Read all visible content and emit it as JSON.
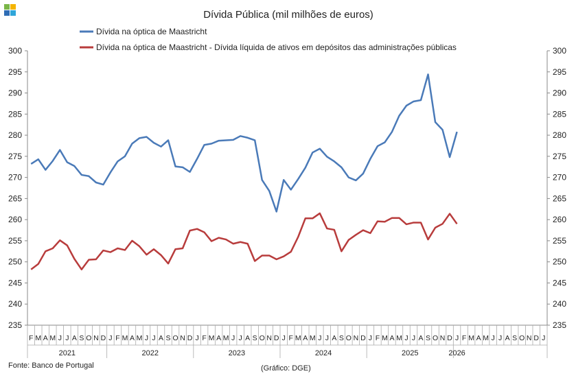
{
  "colors": {
    "series_blue": "#4a7ab8",
    "series_red": "#b83c3c",
    "logo_a": "#7ab648",
    "logo_b": "#f4b400",
    "logo_c": "#2f6db5",
    "logo_d": "#2fa6d9"
  },
  "footer": {
    "source": "Fonte: Banco de Portugal",
    "credit": "(Gráfico: DGE)"
  },
  "chart_data": {
    "type": "line",
    "title": "Dívida Pública (mil milhões de euros)",
    "ylim": [
      235,
      300
    ],
    "yticks": [
      "235",
      "240",
      "245",
      "250",
      "255",
      "260",
      "265",
      "270",
      "275",
      "280",
      "285",
      "290",
      "295",
      "300"
    ],
    "month_labels": [
      "F",
      "M",
      "A",
      "M",
      "J",
      "J",
      "A",
      "S",
      "O",
      "N",
      "D",
      "J",
      "F",
      "M",
      "A",
      "M",
      "J",
      "J",
      "A",
      "S",
      "O",
      "N",
      "D",
      "J",
      "F",
      "M",
      "A",
      "M",
      "J",
      "J",
      "A",
      "S",
      "O",
      "N",
      "D",
      "J",
      "F",
      "M",
      "A",
      "M",
      "J",
      "J",
      "A",
      "S",
      "O",
      "N",
      "D",
      "J",
      "F",
      "M",
      "A",
      "M",
      "J",
      "J",
      "A",
      "S",
      "O",
      "N",
      "D",
      "J",
      "F",
      "M",
      "A",
      "M",
      "J",
      "J",
      "A",
      "S",
      "O",
      "N",
      "D",
      "J"
    ],
    "years": [
      "2021",
      "2022",
      "2023",
      "2024",
      "2025",
      "2026"
    ],
    "year_start_index": [
      0,
      11,
      23,
      35,
      47,
      59
    ],
    "year_end_index": [
      10,
      22,
      34,
      46,
      58,
      59
    ],
    "series": [
      {
        "name": "Dívida na óptica de Maastricht",
        "color": "#4a7ab8",
        "values": [
          273.2,
          274.3,
          271.8,
          273.9,
          276.5,
          273.6,
          272.7,
          270.6,
          270.3,
          268.8,
          268.3,
          271.2,
          273.8,
          275.0,
          278.0,
          279.3,
          279.6,
          278.2,
          277.3,
          278.8,
          272.6,
          272.4,
          271.3,
          274.4,
          277.7,
          278.0,
          278.7,
          278.8,
          278.9,
          279.8,
          279.4,
          278.8,
          269.4,
          266.8,
          261.9,
          269.4,
          267.1,
          269.6,
          272.3,
          275.9,
          276.8,
          274.9,
          273.8,
          272.4,
          270.0,
          269.3,
          270.9,
          274.4,
          277.4,
          278.3,
          280.8,
          284.6,
          287.0,
          288.0,
          288.3,
          294.4,
          283.1,
          281.3,
          274.8,
          280.8
        ]
      },
      {
        "name": "Dívida na óptica de Maastricht - Dívida líquida de ativos em depósitos das administrações públicas",
        "color": "#b83c3c",
        "values": [
          248.2,
          249.5,
          252.5,
          253.2,
          255.1,
          253.9,
          250.7,
          248.2,
          250.5,
          250.6,
          252.7,
          252.3,
          253.2,
          252.8,
          255.0,
          253.7,
          251.7,
          253.0,
          251.6,
          249.6,
          253.0,
          253.2,
          257.4,
          257.8,
          257.0,
          254.9,
          255.7,
          255.3,
          254.3,
          254.7,
          254.3,
          250.2,
          251.5,
          251.5,
          250.6,
          251.3,
          252.4,
          255.9,
          260.3,
          260.3,
          261.5,
          257.9,
          257.6,
          252.5,
          255.2,
          256.4,
          257.5,
          256.8,
          259.6,
          259.5,
          260.4,
          260.4,
          258.9,
          259.3,
          259.3,
          255.3,
          258.1,
          259.0,
          261.4,
          259.0
        ]
      }
    ]
  }
}
